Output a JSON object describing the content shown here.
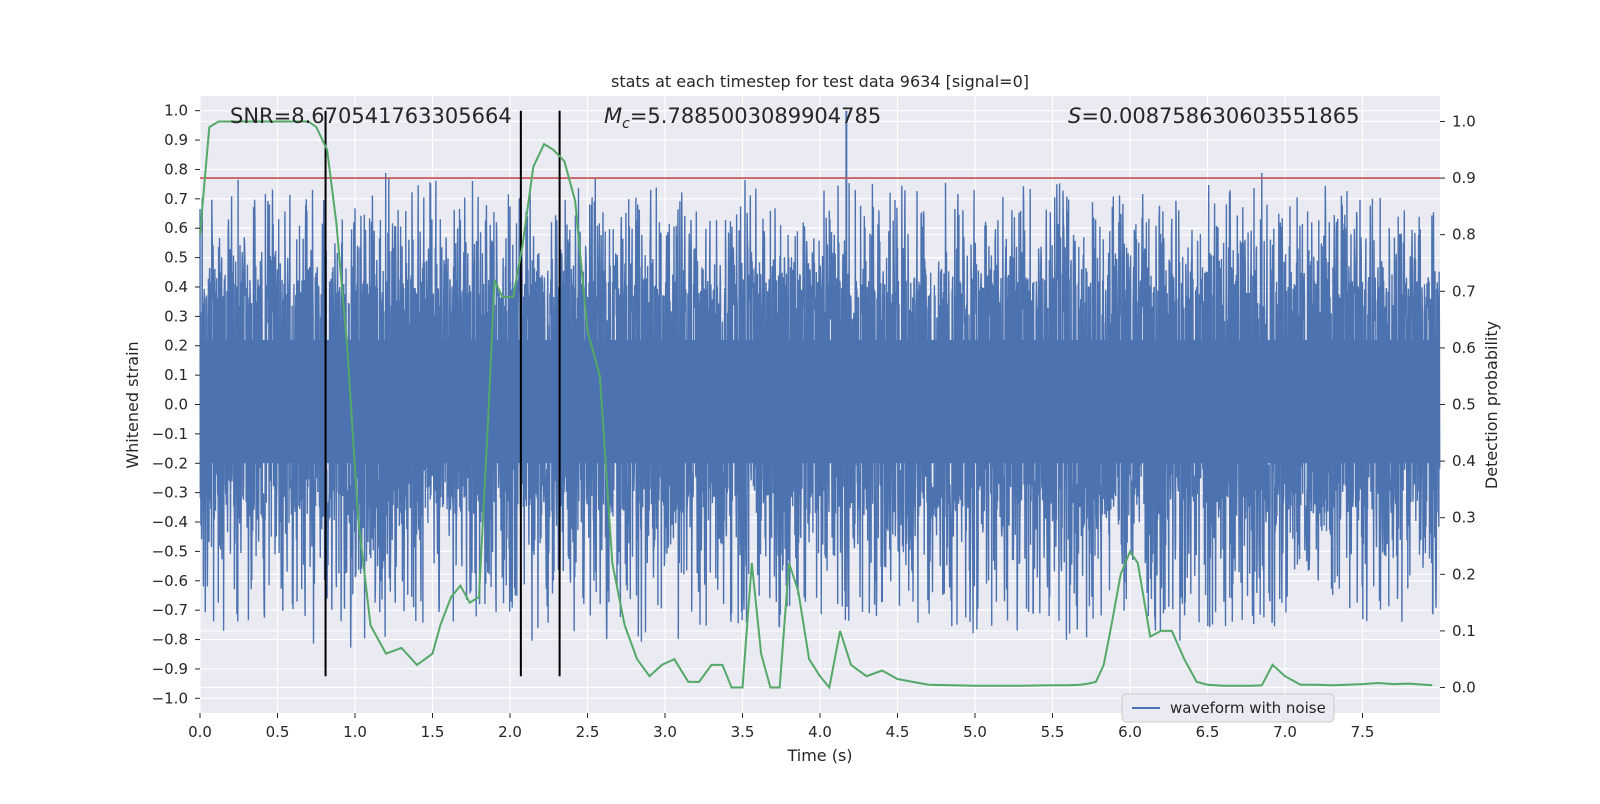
{
  "chart_data": {
    "type": "line",
    "title": "stats at each timestep for test data 9634 [signal=0]",
    "xlabel": "Time (s)",
    "ylabel_left": "Whitened strain",
    "ylabel_right": "Detection probability",
    "xlim": [
      0,
      8
    ],
    "ylim_left": [
      -1.05,
      1.05
    ],
    "ylim_right": [
      -0.045,
      1.045
    ],
    "x_ticks": [
      0.0,
      0.5,
      1.0,
      1.5,
      2.0,
      2.5,
      3.0,
      3.5,
      4.0,
      4.5,
      5.0,
      5.5,
      6.0,
      6.5,
      7.0,
      7.5
    ],
    "x_tick_labels": [
      "0.0",
      "0.5",
      "1.0",
      "1.5",
      "2.0",
      "2.5",
      "3.0",
      "3.5",
      "4.0",
      "4.5",
      "5.0",
      "5.5",
      "6.0",
      "6.5",
      "7.0",
      "7.5"
    ],
    "y_ticks_left": [
      1.0,
      0.9,
      0.8,
      0.7,
      0.6,
      0.5,
      0.4,
      0.3,
      0.2,
      0.1,
      0.0,
      -0.1,
      -0.2,
      -0.3,
      -0.4,
      -0.5,
      -0.6,
      -0.7,
      -0.8,
      -0.9,
      -1.0
    ],
    "y_tick_labels_left": [
      "1.0",
      "0.9",
      "0.8",
      "0.7",
      "0.6",
      "0.5",
      "0.4",
      "0.3",
      "0.2",
      "0.1",
      "0.0",
      "−0.1",
      "−0.2",
      "−0.3",
      "−0.4",
      "−0.5",
      "−0.6",
      "−0.7",
      "−0.8",
      "−0.9",
      "−1.0"
    ],
    "y_ticks_right": [
      1.0,
      0.9,
      0.8,
      0.7,
      0.6,
      0.5,
      0.4,
      0.3,
      0.2,
      0.1,
      0.0
    ],
    "y_tick_labels_right": [
      "1.0",
      "0.9",
      "0.8",
      "0.7",
      "0.6",
      "0.5",
      "0.4",
      "0.3",
      "0.2",
      "0.1",
      "0.0"
    ],
    "annotations": {
      "snr": "SNR=8.670541763305664",
      "mc_symbol": "M",
      "mc_subscript": "c",
      "mc_value": "=5.7885003089904785",
      "s_symbol": "S",
      "s_value": "=0.008758630603551865"
    },
    "threshold_right": 0.9,
    "marker_lines_x": [
      0.81,
      2.07,
      2.32
    ],
    "marker_lines_range": [
      -0.925,
      1.0
    ],
    "waveform": {
      "name": "waveform with noise",
      "band_typical": [
        -0.35,
        0.42
      ],
      "peak_max_x": 4.17,
      "peak_max_y": 1.0,
      "approx_sample_count": 4000
    },
    "probability_series": {
      "x": [
        0.0,
        0.06,
        0.12,
        0.2,
        0.3,
        0.4,
        0.5,
        0.6,
        0.7,
        0.75,
        0.82,
        0.88,
        0.95,
        1.02,
        1.1,
        1.2,
        1.3,
        1.4,
        1.5,
        1.55,
        1.62,
        1.68,
        1.74,
        1.8,
        1.86,
        1.9,
        1.95,
        2.02,
        2.08,
        2.15,
        2.22,
        2.28,
        2.35,
        2.42,
        2.5,
        2.58,
        2.66,
        2.74,
        2.82,
        2.9,
        2.98,
        3.06,
        3.15,
        3.22,
        3.3,
        3.37,
        3.43,
        3.5,
        3.56,
        3.62,
        3.68,
        3.74,
        3.8,
        3.86,
        3.93,
        4.0,
        4.06,
        4.13,
        4.2,
        4.3,
        4.4,
        4.5,
        4.7,
        5.0,
        5.3,
        5.5,
        5.6,
        5.68,
        5.73,
        5.78,
        5.83,
        5.88,
        5.94,
        6.0,
        6.05,
        6.13,
        6.2,
        6.27,
        6.35,
        6.43,
        6.5,
        6.6,
        6.7,
        6.78,
        6.85,
        6.92,
        7.0,
        7.1,
        7.2,
        7.3,
        7.4,
        7.5,
        7.6,
        7.7,
        7.8,
        7.95
      ],
      "y": [
        0.8,
        0.99,
        1.0,
        1.0,
        1.0,
        1.0,
        1.0,
        1.0,
        1.0,
        0.99,
        0.95,
        0.82,
        0.6,
        0.3,
        0.11,
        0.06,
        0.07,
        0.04,
        0.06,
        0.11,
        0.16,
        0.18,
        0.15,
        0.16,
        0.48,
        0.72,
        0.69,
        0.69,
        0.78,
        0.92,
        0.96,
        0.95,
        0.93,
        0.86,
        0.63,
        0.55,
        0.22,
        0.11,
        0.05,
        0.02,
        0.04,
        0.05,
        0.01,
        0.01,
        0.04,
        0.04,
        0.0,
        0.0,
        0.22,
        0.06,
        0.0,
        0.0,
        0.22,
        0.17,
        0.05,
        0.02,
        0.0,
        0.1,
        0.04,
        0.02,
        0.03,
        0.015,
        0.005,
        0.003,
        0.003,
        0.004,
        0.004,
        0.005,
        0.007,
        0.01,
        0.04,
        0.11,
        0.2,
        0.24,
        0.22,
        0.09,
        0.1,
        0.1,
        0.05,
        0.01,
        0.005,
        0.003,
        0.003,
        0.003,
        0.004,
        0.04,
        0.02,
        0.005,
        0.005,
        0.004,
        0.005,
        0.006,
        0.008,
        0.006,
        0.007,
        0.004
      ]
    },
    "legend": {
      "entries": [
        "waveform with noise"
      ],
      "placement": "lower-right"
    },
    "grid": true,
    "colors": {
      "waveform": "#4c72b0",
      "probability": "#55a868",
      "threshold": "#c44e52",
      "marker": "#000000",
      "axes_bg": "#eaeaf2",
      "grid": "#ffffff",
      "text": "#262626"
    }
  }
}
